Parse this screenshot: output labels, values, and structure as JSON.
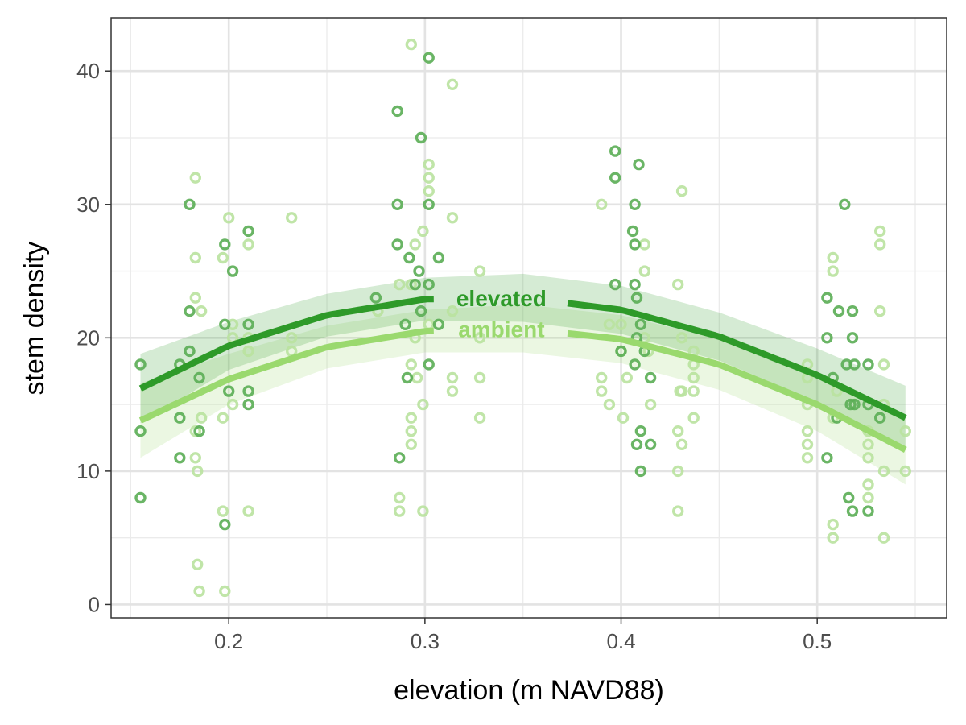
{
  "chart_data": {
    "type": "scatter",
    "title": "",
    "xlabel": "elevation (m NAVD88)",
    "ylabel": "stem density",
    "xlim": [
      0.14,
      0.566
    ],
    "ylim": [
      -1,
      44
    ],
    "x_ticks": [
      0.2,
      0.3,
      0.4,
      0.5
    ],
    "y_ticks": [
      0,
      10,
      20,
      30,
      40
    ],
    "x_tick_labels": [
      "0.2",
      "0.3",
      "0.4",
      "0.5"
    ],
    "y_tick_labels": [
      "0",
      "10",
      "20",
      "30",
      "40"
    ],
    "grid": true,
    "legend": "none (curves labeled directly)",
    "series": [
      {
        "name": "elevated",
        "color": "#2e9a29",
        "point_color": "#5aad54",
        "fit": {
          "x": [
            0.155,
            0.2,
            0.25,
            0.3,
            0.35,
            0.4,
            0.45,
            0.5,
            0.545
          ],
          "y": [
            16.2,
            19.4,
            21.7,
            22.9,
            23.0,
            22.1,
            20.1,
            17.2,
            14.0
          ],
          "lower": [
            13.6,
            17.6,
            20.1,
            21.3,
            21.2,
            20.3,
            18.3,
            15.2,
            11.6
          ],
          "upper": [
            18.8,
            21.2,
            23.3,
            24.5,
            24.8,
            23.9,
            21.9,
            19.2,
            16.4
          ]
        },
        "points": [
          [
            0.155,
            18
          ],
          [
            0.155,
            13
          ],
          [
            0.155,
            8
          ],
          [
            0.175,
            14
          ],
          [
            0.175,
            11
          ],
          [
            0.175,
            18
          ],
          [
            0.18,
            30
          ],
          [
            0.18,
            22
          ],
          [
            0.18,
            19
          ],
          [
            0.185,
            17
          ],
          [
            0.185,
            13
          ],
          [
            0.198,
            27
          ],
          [
            0.198,
            21
          ],
          [
            0.198,
            6
          ],
          [
            0.2,
            16
          ],
          [
            0.202,
            25
          ],
          [
            0.21,
            28
          ],
          [
            0.21,
            21
          ],
          [
            0.21,
            16
          ],
          [
            0.21,
            15
          ],
          [
            0.275,
            23
          ],
          [
            0.286,
            37
          ],
          [
            0.286,
            30
          ],
          [
            0.286,
            27
          ],
          [
            0.287,
            11
          ],
          [
            0.29,
            21
          ],
          [
            0.291,
            17
          ],
          [
            0.292,
            26
          ],
          [
            0.295,
            24
          ],
          [
            0.297,
            25
          ],
          [
            0.298,
            35
          ],
          [
            0.298,
            22
          ],
          [
            0.302,
            41
          ],
          [
            0.302,
            30
          ],
          [
            0.302,
            24
          ],
          [
            0.302,
            18
          ],
          [
            0.307,
            26
          ],
          [
            0.307,
            21
          ],
          [
            0.397,
            34
          ],
          [
            0.397,
            32
          ],
          [
            0.397,
            24
          ],
          [
            0.4,
            19
          ],
          [
            0.406,
            28
          ],
          [
            0.407,
            30
          ],
          [
            0.407,
            27
          ],
          [
            0.407,
            24
          ],
          [
            0.408,
            23
          ],
          [
            0.408,
            20
          ],
          [
            0.407,
            18
          ],
          [
            0.408,
            12
          ],
          [
            0.409,
            33
          ],
          [
            0.41,
            21
          ],
          [
            0.41,
            13
          ],
          [
            0.41,
            10
          ],
          [
            0.412,
            19
          ],
          [
            0.415,
            17
          ],
          [
            0.415,
            12
          ],
          [
            0.505,
            20
          ],
          [
            0.505,
            11
          ],
          [
            0.505,
            23
          ],
          [
            0.508,
            17
          ],
          [
            0.51,
            14
          ],
          [
            0.511,
            22
          ],
          [
            0.514,
            30
          ],
          [
            0.515,
            18
          ],
          [
            0.516,
            8
          ],
          [
            0.517,
            15
          ],
          [
            0.518,
            22
          ],
          [
            0.518,
            20
          ],
          [
            0.518,
            7
          ],
          [
            0.519,
            18
          ],
          [
            0.519,
            15
          ],
          [
            0.526,
            18
          ],
          [
            0.526,
            15
          ],
          [
            0.526,
            7
          ],
          [
            0.532,
            14
          ]
        ]
      },
      {
        "name": "ambient",
        "color": "#9ad96e",
        "point_color": "#b9e29f",
        "fit": {
          "x": [
            0.155,
            0.2,
            0.25,
            0.3,
            0.35,
            0.4,
            0.45,
            0.5,
            0.545
          ],
          "y": [
            13.8,
            16.9,
            19.3,
            20.5,
            20.7,
            19.9,
            18.0,
            15.0,
            11.6
          ],
          "lower": [
            11.0,
            15.0,
            17.7,
            18.9,
            18.9,
            18.1,
            16.1,
            13.0,
            9.0
          ],
          "upper": [
            16.6,
            18.8,
            20.9,
            22.1,
            22.5,
            21.7,
            19.9,
            17.0,
            14.2
          ]
        },
        "points": [
          [
            0.183,
            32
          ],
          [
            0.183,
            26
          ],
          [
            0.183,
            23
          ],
          [
            0.183,
            13
          ],
          [
            0.183,
            11
          ],
          [
            0.184,
            10
          ],
          [
            0.184,
            3
          ],
          [
            0.185,
            1
          ],
          [
            0.186,
            22
          ],
          [
            0.186,
            14
          ],
          [
            0.197,
            26
          ],
          [
            0.197,
            14
          ],
          [
            0.197,
            7
          ],
          [
            0.198,
            1
          ],
          [
            0.2,
            29
          ],
          [
            0.202,
            21
          ],
          [
            0.202,
            20
          ],
          [
            0.202,
            15
          ],
          [
            0.21,
            27
          ],
          [
            0.21,
            20
          ],
          [
            0.21,
            19
          ],
          [
            0.21,
            7
          ],
          [
            0.232,
            29
          ],
          [
            0.232,
            20
          ],
          [
            0.232,
            19
          ],
          [
            0.276,
            22
          ],
          [
            0.287,
            8
          ],
          [
            0.287,
            7
          ],
          [
            0.287,
            24
          ],
          [
            0.293,
            42
          ],
          [
            0.293,
            24
          ],
          [
            0.293,
            18
          ],
          [
            0.293,
            14
          ],
          [
            0.293,
            13
          ],
          [
            0.293,
            12
          ],
          [
            0.295,
            27
          ],
          [
            0.295,
            20
          ],
          [
            0.296,
            17
          ],
          [
            0.299,
            28
          ],
          [
            0.299,
            15
          ],
          [
            0.299,
            7
          ],
          [
            0.302,
            33
          ],
          [
            0.302,
            32
          ],
          [
            0.302,
            31
          ],
          [
            0.302,
            21
          ],
          [
            0.314,
            39
          ],
          [
            0.314,
            29
          ],
          [
            0.314,
            22
          ],
          [
            0.314,
            17
          ],
          [
            0.314,
            16
          ],
          [
            0.328,
            25
          ],
          [
            0.328,
            20
          ],
          [
            0.328,
            17
          ],
          [
            0.328,
            14
          ],
          [
            0.39,
            30
          ],
          [
            0.39,
            17
          ],
          [
            0.39,
            16
          ],
          [
            0.394,
            21
          ],
          [
            0.394,
            15
          ],
          [
            0.4,
            21
          ],
          [
            0.4,
            19
          ],
          [
            0.401,
            14
          ],
          [
            0.403,
            17
          ],
          [
            0.412,
            27
          ],
          [
            0.412,
            25
          ],
          [
            0.412,
            20
          ],
          [
            0.414,
            19
          ],
          [
            0.415,
            15
          ],
          [
            0.429,
            24
          ],
          [
            0.429,
            13
          ],
          [
            0.429,
            10
          ],
          [
            0.429,
            7
          ],
          [
            0.43,
            16
          ],
          [
            0.431,
            31
          ],
          [
            0.431,
            20
          ],
          [
            0.431,
            12
          ],
          [
            0.431,
            16
          ],
          [
            0.437,
            19
          ],
          [
            0.437,
            18
          ],
          [
            0.437,
            17
          ],
          [
            0.437,
            16
          ],
          [
            0.437,
            14
          ],
          [
            0.495,
            18
          ],
          [
            0.495,
            17
          ],
          [
            0.495,
            15
          ],
          [
            0.495,
            13
          ],
          [
            0.495,
            12
          ],
          [
            0.495,
            11
          ],
          [
            0.508,
            26
          ],
          [
            0.508,
            25
          ],
          [
            0.508,
            14
          ],
          [
            0.508,
            6
          ],
          [
            0.508,
            5
          ],
          [
            0.51,
            16
          ],
          [
            0.526,
            13
          ],
          [
            0.526,
            12
          ],
          [
            0.526,
            11
          ],
          [
            0.526,
            9
          ],
          [
            0.526,
            8
          ],
          [
            0.532,
            28
          ],
          [
            0.532,
            27
          ],
          [
            0.532,
            22
          ],
          [
            0.534,
            18
          ],
          [
            0.534,
            15
          ],
          [
            0.534,
            10
          ],
          [
            0.534,
            5
          ],
          [
            0.545,
            13
          ],
          [
            0.545,
            10
          ]
        ]
      }
    ],
    "annotations": [
      "elevated",
      "ambient"
    ]
  }
}
